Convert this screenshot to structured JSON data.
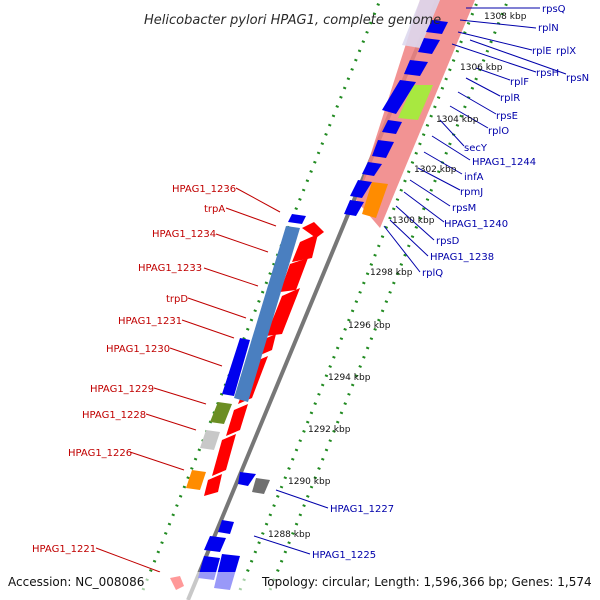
{
  "title": "Helicobacter pylori HPAG1, complete genome",
  "footer": {
    "accession": "Accession: NC_008086",
    "stats": "Topology: circular; Length: 1,596,366 bp; Genes: 1,574"
  },
  "colors": {
    "forward": "#ff0000",
    "reverse": "#0000ee",
    "gc_skew": "#228b22",
    "backbone": "#777777",
    "left_label": "#c00000",
    "right_label": "#0000aa"
  },
  "kbp_ticks": [
    "1288 kbp",
    "1290 kbp",
    "1292 kbp",
    "1294 kbp",
    "1296 kbp",
    "1298 kbp",
    "1300 kbp",
    "1302 kbp",
    "1304 kbp",
    "1306 kbp",
    "1308 kbp"
  ],
  "left_labels": [
    "HPAG1_1236",
    "trpA",
    "HPAG1_1234",
    "HPAG1_1233",
    "trpD",
    "HPAG1_1231",
    "HPAG1_1230",
    "HPAG1_1229",
    "HPAG1_1228",
    "HPAG1_1226",
    "HPAG1_1221"
  ],
  "right_labels": [
    "rpsQ",
    "rplN",
    "rplE",
    "rplX",
    "rpsH",
    "rpsN",
    "rplF",
    "rplR",
    "rpsE",
    "rplO",
    "secY",
    "HPAG1_1244",
    "infA",
    "rpmJ",
    "rpsM",
    "HPAG1_1240",
    "rpsD",
    "HPAG1_1238",
    "rplQ",
    "HPAG1_1227",
    "HPAG1_1225"
  ]
}
